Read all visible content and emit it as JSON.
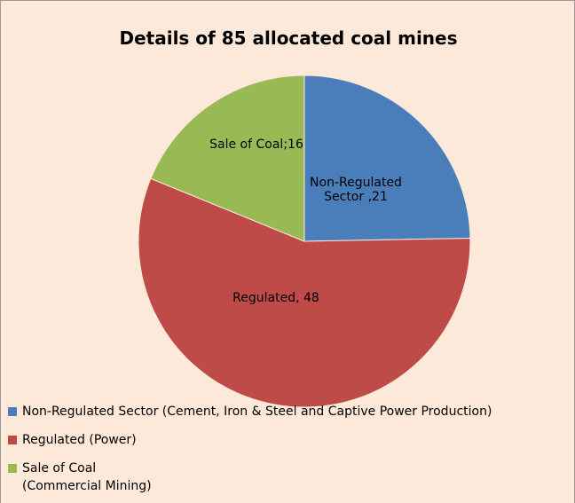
{
  "chart_data": {
    "type": "pie",
    "title": "Details of 85 allocated coal mines",
    "categories": [
      "Non-Regulated Sector (Cement, Iron & Steel and Captive Power Production)",
      "Regulated (Power)",
      "Sale of Coal (Commercial Mining)"
    ],
    "values": [
      21,
      48,
      16
    ],
    "value_labels": [
      "Non-Regulated Sector ,21",
      "Regulated, 48",
      "Sale of Coal;16"
    ],
    "colors": [
      "#4a7ebb",
      "#be4b48",
      "#98b954"
    ],
    "legend": "bottom"
  }
}
